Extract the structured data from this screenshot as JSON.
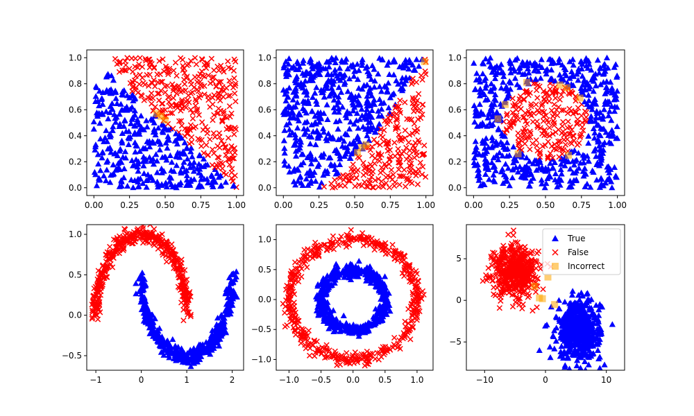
{
  "legend": {
    "entries": [
      {
        "label": "True",
        "marker": "triangle",
        "color": "#0000ff"
      },
      {
        "label": "False",
        "marker": "x",
        "color": "#ff0000"
      },
      {
        "label": "Incorrect",
        "marker": "square",
        "color": "#ffa500"
      }
    ]
  },
  "chart_data": [
    {
      "type": "scatter",
      "name": "subplot-1-diagonal-split",
      "xlim": [
        -0.05,
        1.05
      ],
      "ylim": [
        -0.06,
        1.06
      ],
      "xticks": [
        0.0,
        0.25,
        0.5,
        0.75,
        1.0
      ],
      "xtick_labels": [
        "0.00",
        "0.25",
        "0.50",
        "0.75",
        "1.00"
      ],
      "yticks": [
        0.0,
        0.2,
        0.4,
        0.6,
        0.8,
        1.0
      ],
      "ytick_labels": [
        "0.0",
        "0.2",
        "0.4",
        "0.6",
        "0.8",
        "1.0"
      ],
      "generator": "diag",
      "n_points": 700,
      "incorrect": [
        [
          0.44,
          0.57
        ],
        [
          0.47,
          0.55
        ],
        [
          0.5,
          0.52
        ]
      ],
      "legend": false
    },
    {
      "type": "scatter",
      "name": "subplot-2-curved-split",
      "xlim": [
        -0.05,
        1.05
      ],
      "ylim": [
        -0.06,
        1.06
      ],
      "xticks": [
        0.0,
        0.25,
        0.5,
        0.75,
        1.0
      ],
      "xtick_labels": [
        "0.00",
        "0.25",
        "0.50",
        "0.75",
        "1.00"
      ],
      "yticks": [
        0.0,
        0.2,
        0.4,
        0.6,
        0.8,
        1.0
      ],
      "ytick_labels": [
        "0.0",
        "0.2",
        "0.4",
        "0.6",
        "0.8",
        "1.0"
      ],
      "generator": "curve",
      "n_points": 750,
      "incorrect": [
        [
          0.52,
          0.27
        ],
        [
          0.55,
          0.31
        ],
        [
          0.58,
          0.33
        ],
        [
          0.99,
          0.97
        ]
      ],
      "legend": false
    },
    {
      "type": "scatter",
      "name": "subplot-3-circle",
      "xlim": [
        -0.05,
        1.05
      ],
      "ylim": [
        -0.06,
        1.06
      ],
      "xticks": [
        0.0,
        0.25,
        0.5,
        0.75,
        1.0
      ],
      "xtick_labels": [
        "0.00",
        "0.25",
        "0.50",
        "0.75",
        "1.00"
      ],
      "yticks": [
        0.0,
        0.2,
        0.4,
        0.6,
        0.8,
        1.0
      ],
      "ytick_labels": [
        "0.0",
        "0.2",
        "0.4",
        "0.6",
        "0.8",
        "1.0"
      ],
      "generator": "circle",
      "n_points": 800,
      "incorrect": [
        [
          0.17,
          0.53
        ],
        [
          0.22,
          0.64
        ],
        [
          0.37,
          0.81
        ],
        [
          0.6,
          0.79
        ],
        [
          0.65,
          0.77
        ],
        [
          0.74,
          0.69
        ],
        [
          0.66,
          0.25
        ],
        [
          0.31,
          0.26
        ]
      ],
      "legend": false
    },
    {
      "type": "scatter",
      "name": "subplot-4-moons",
      "xlim": [
        -1.2,
        2.25
      ],
      "ylim": [
        -0.68,
        1.12
      ],
      "xticks": [
        -1,
        0,
        1,
        2
      ],
      "xtick_labels": [
        "−1",
        "0",
        "1",
        "2"
      ],
      "yticks": [
        -0.5,
        0.0,
        0.5,
        1.0
      ],
      "ytick_labels": [
        "−0.5",
        "0.0",
        "0.5",
        "1.0"
      ],
      "generator": "moons",
      "n_points": 450,
      "incorrect": [],
      "legend": false
    },
    {
      "type": "scatter",
      "name": "subplot-5-rings",
      "xlim": [
        -1.2,
        1.25
      ],
      "ylim": [
        -1.18,
        1.25
      ],
      "xticks": [
        -1.0,
        -0.5,
        0.0,
        0.5,
        1.0
      ],
      "xtick_labels": [
        "−1.0",
        "−0.5",
        "0.0",
        "0.5",
        "1.0"
      ],
      "yticks": [
        -1.0,
        -0.5,
        0.0,
        0.5,
        1.0
      ],
      "ytick_labels": [
        "−1.0",
        "−0.5",
        "0.0",
        "0.5",
        "1.0"
      ],
      "generator": "rings",
      "n_points": 500,
      "incorrect": [],
      "legend": false
    },
    {
      "type": "scatter",
      "name": "subplot-6-blobs",
      "xlim": [
        -13.0,
        13.0
      ],
      "ylim": [
        -8.4,
        9.1
      ],
      "xticks": [
        -10,
        0,
        10
      ],
      "xtick_labels": [
        "−10",
        "0",
        "10"
      ],
      "yticks": [
        -5,
        0,
        5
      ],
      "ytick_labels": [
        "−5",
        "0",
        "5"
      ],
      "generator": "blobs",
      "n_points": 500,
      "incorrect": [
        [
          -1.8,
          1.7
        ],
        [
          -1.0,
          0.3
        ],
        [
          0.4,
          2.8
        ],
        [
          1.5,
          -0.5
        ],
        [
          -0.5,
          0.2
        ]
      ],
      "legend": true
    }
  ]
}
